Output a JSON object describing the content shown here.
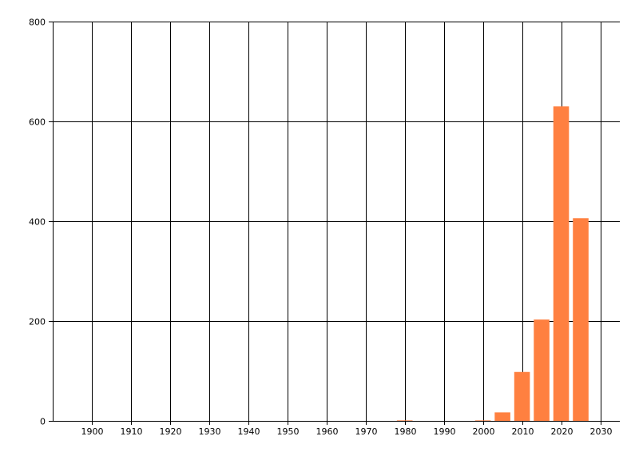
{
  "chart_data": {
    "type": "bar",
    "title": "",
    "xlabel": "",
    "ylabel": "",
    "xlim": [
      1890,
      2035
    ],
    "ylim": [
      0,
      800
    ],
    "grid": true,
    "bar_color": "#FF8040",
    "bar_width_years": 4,
    "x_ticks": [
      1900,
      1910,
      1920,
      1930,
      1940,
      1950,
      1960,
      1970,
      1980,
      1990,
      2000,
      2010,
      2020,
      2030
    ],
    "y_ticks": [
      0,
      200,
      400,
      600,
      800
    ],
    "x": [
      1980,
      2000,
      2005,
      2010,
      2015,
      2020,
      2025
    ],
    "values": [
      1,
      1,
      17,
      98,
      203,
      630,
      406
    ]
  }
}
